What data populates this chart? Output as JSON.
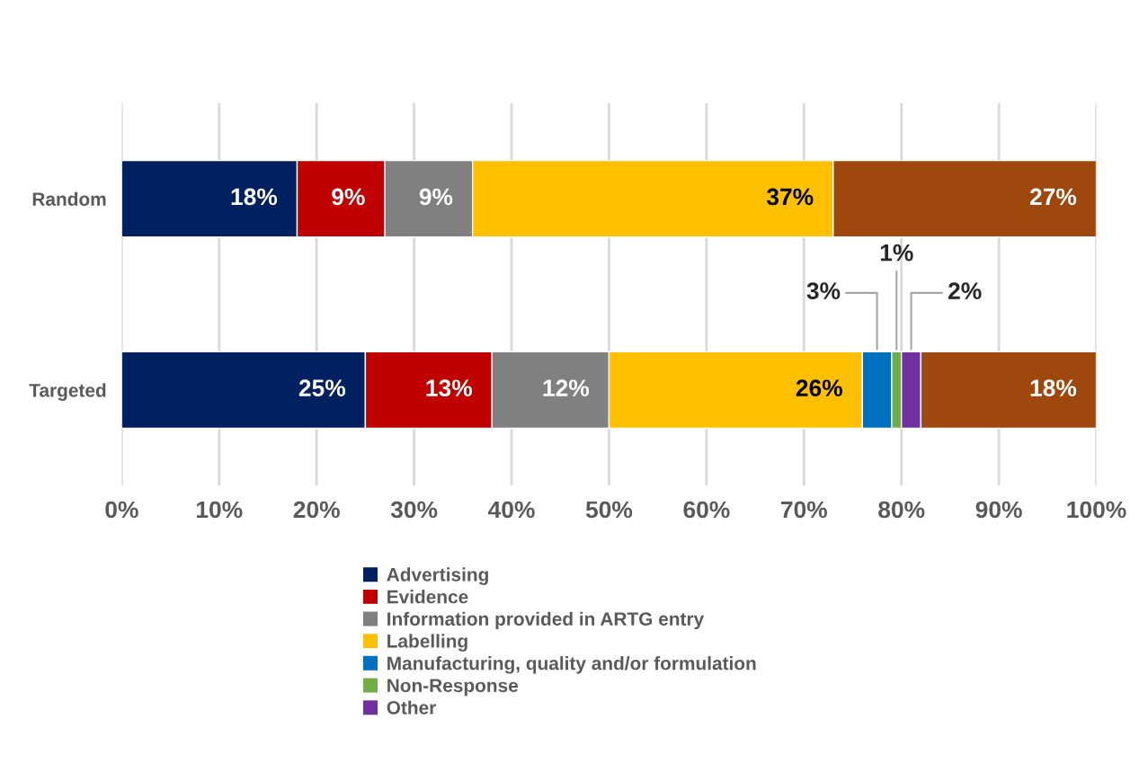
{
  "chart_data": {
    "type": "bar",
    "orientation": "horizontal",
    "stacked": true,
    "categories": [
      "Random",
      "Targeted"
    ],
    "series": [
      {
        "name": "Advertising",
        "color": "#002060",
        "values": [
          18,
          25
        ],
        "value_labels": [
          "18%",
          "25%"
        ]
      },
      {
        "name": "Evidence",
        "color": "#c00000",
        "values": [
          9,
          13
        ],
        "value_labels": [
          "9%",
          "13%"
        ]
      },
      {
        "name": "Information provided in ARTG entry",
        "color": "#808080",
        "values": [
          9,
          12
        ],
        "value_labels": [
          "9%",
          "12%"
        ]
      },
      {
        "name": "Labelling",
        "color": "#ffc000",
        "values": [
          37,
          26
        ],
        "value_labels": [
          "37%",
          "26%"
        ]
      },
      {
        "name": "Manufacturing, quality and/or formulation",
        "color": "#0070c0",
        "values": [
          null,
          3
        ],
        "value_labels": [
          null,
          "3%"
        ]
      },
      {
        "name": "Non-Response",
        "color": "#70ad47",
        "values": [
          null,
          1
        ],
        "value_labels": [
          null,
          "1%"
        ]
      },
      {
        "name": "Other",
        "color": "#7030a0",
        "values": [
          null,
          2
        ],
        "value_labels": [
          null,
          "2%"
        ]
      },
      {
        "color": "#9e480e",
        "values": [
          27,
          18
        ],
        "value_labels": [
          "27%",
          "18%"
        ]
      }
    ],
    "xlim": [
      0,
      100
    ],
    "xticks": [
      {
        "value": 0,
        "label": "0%"
      },
      {
        "value": 10,
        "label": "10%"
      },
      {
        "value": 20,
        "label": "20%"
      },
      {
        "value": 30,
        "label": "30%"
      },
      {
        "value": 40,
        "label": "40%"
      },
      {
        "value": 50,
        "label": "50%"
      },
      {
        "value": 60,
        "label": "60%"
      },
      {
        "value": 70,
        "label": "70%"
      },
      {
        "value": 80,
        "label": "80%"
      },
      {
        "value": 90,
        "label": "90%"
      },
      {
        "value": 100,
        "label": "100%"
      }
    ],
    "grid": "x",
    "legend": "bottom"
  }
}
